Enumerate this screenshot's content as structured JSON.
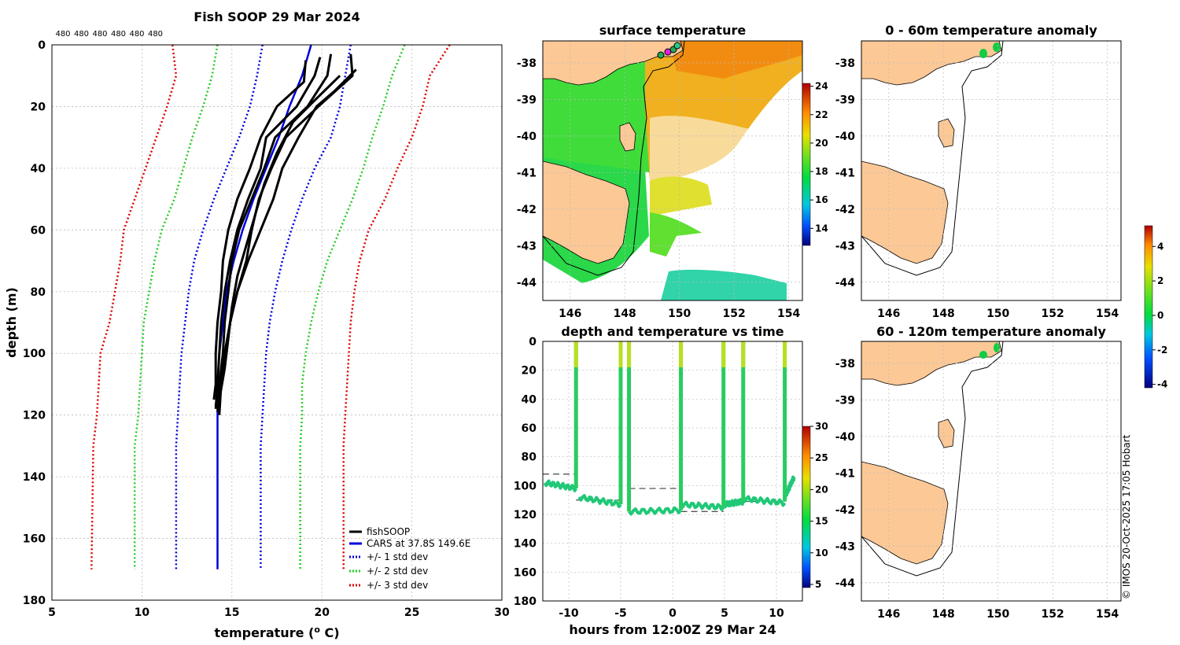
{
  "credit": "© IMOS 20-Oct-2025 17:05 Hobart",
  "colors": {
    "land": "#fbc896",
    "fish": "#000000",
    "cars": "#0000dd",
    "sd1": "#0000dd",
    "sd2": "#22cc22",
    "sd3": "#dd0000",
    "grid": "#bbbbbb"
  },
  "chart_data": [
    {
      "type": "line",
      "id": "profile",
      "title": "Fish SOOP 29 Mar 2024",
      "top_labels": [
        "480",
        "480",
        "480",
        "480",
        "480",
        "480"
      ],
      "xlabel": "temperature (o C)",
      "xlabel_main": "temperature (",
      "xlabel_sup": "o",
      "xlabel_end": " C)",
      "ylabel": "depth (m)",
      "xlim": [
        5,
        30
      ],
      "ylim": [
        0,
        180
      ],
      "xticks": [
        "5",
        "10",
        "15",
        "20",
        "25",
        "30"
      ],
      "yticks": [
        "0",
        "20",
        "40",
        "60",
        "80",
        "100",
        "120",
        "140",
        "160",
        "180"
      ],
      "legend": [
        "fishSOOP",
        "CARS at 37.8S 149.6E",
        "+/- 1 std dev",
        "+/- 2 std dev",
        "+/- 3 std dev"
      ],
      "series": [
        {
          "name": "CARS mean",
          "depth": [
            0,
            10,
            20,
            30,
            40,
            50,
            60,
            70,
            80,
            90,
            100,
            110,
            120,
            130,
            170
          ],
          "temp": [
            19.4,
            18.9,
            18.2,
            17.6,
            16.9,
            16.2,
            15.6,
            15.1,
            14.7,
            14.5,
            14.3,
            14.2,
            14.2,
            14.2,
            14.2
          ]
        },
        {
          "name": "+1 std",
          "depth": [
            0,
            10,
            20,
            30,
            40,
            50,
            60,
            70,
            80,
            90,
            100,
            110,
            120,
            130,
            170
          ],
          "temp": [
            21.6,
            21.3,
            21.0,
            20.5,
            19.6,
            18.9,
            18.3,
            17.8,
            17.4,
            17.1,
            16.9,
            16.8,
            16.7,
            16.6,
            16.6
          ]
        },
        {
          "name": "-1 std",
          "depth": [
            0,
            10,
            20,
            30,
            40,
            50,
            60,
            70,
            80,
            90,
            100,
            110,
            120,
            130,
            170
          ],
          "temp": [
            16.7,
            16.4,
            16.0,
            15.4,
            14.7,
            14.0,
            13.4,
            12.9,
            12.6,
            12.4,
            12.2,
            12.1,
            12.0,
            11.9,
            11.9
          ]
        },
        {
          "name": "+2 std",
          "depth": [
            0,
            10,
            20,
            30,
            40,
            50,
            60,
            70,
            80,
            90,
            100,
            110,
            120,
            130,
            170
          ],
          "temp": [
            24.6,
            23.9,
            23.4,
            22.8,
            22.3,
            21.7,
            21.0,
            20.3,
            19.8,
            19.4,
            19.1,
            18.9,
            18.9,
            18.8,
            18.8
          ]
        },
        {
          "name": "-2 std",
          "depth": [
            0,
            10,
            20,
            30,
            40,
            50,
            60,
            70,
            80,
            90,
            100,
            110,
            120,
            130,
            170
          ],
          "temp": [
            14.2,
            13.9,
            13.4,
            12.8,
            12.3,
            11.8,
            11.1,
            10.7,
            10.4,
            10.1,
            10.0,
            9.9,
            9.8,
            9.6,
            9.6
          ]
        },
        {
          "name": "+3 std",
          "depth": [
            0,
            10,
            20,
            30,
            40,
            50,
            60,
            70,
            80,
            90,
            100,
            110,
            120,
            130,
            170
          ],
          "temp": [
            27.1,
            26.0,
            25.6,
            25.0,
            24.2,
            23.5,
            22.6,
            22.1,
            21.8,
            21.6,
            21.5,
            21.4,
            21.3,
            21.2,
            21.2
          ]
        },
        {
          "name": "-3 std",
          "depth": [
            0,
            10,
            20,
            30,
            40,
            50,
            60,
            70,
            80,
            90,
            100,
            110,
            120,
            130,
            170
          ],
          "temp": [
            11.7,
            11.9,
            11.4,
            10.8,
            10.2,
            9.6,
            9.0,
            8.8,
            8.5,
            8.2,
            7.7,
            7.6,
            7.5,
            7.3,
            7.2
          ]
        },
        {
          "name": "fish1",
          "depth": [
            4,
            10,
            20,
            30,
            40,
            50,
            60,
            70,
            80,
            90,
            100,
            110,
            118
          ],
          "temp": [
            19.9,
            19.6,
            18.6,
            16.9,
            16.6,
            15.9,
            15.3,
            14.9,
            14.6,
            14.4,
            14.3,
            14.2,
            14.1
          ]
        },
        {
          "name": "fish2",
          "depth": [
            3,
            10,
            20,
            30,
            40,
            50,
            60,
            70,
            80,
            90,
            100,
            110,
            117
          ],
          "temp": [
            20.5,
            20.3,
            19.2,
            17.4,
            16.8,
            16.1,
            15.4,
            15.0,
            14.8,
            14.6,
            14.5,
            14.3,
            14.1
          ]
        },
        {
          "name": "fish3",
          "depth": [
            3,
            10,
            20,
            30,
            40,
            50,
            60,
            70,
            80,
            90,
            100,
            110,
            119
          ],
          "temp": [
            21.6,
            21.7,
            19.8,
            18.0,
            17.2,
            16.5,
            16.1,
            15.8,
            15.3,
            14.9,
            14.7,
            14.4,
            14.2
          ]
        },
        {
          "name": "fish4",
          "depth": [
            8,
            15,
            20,
            30,
            40,
            50,
            60,
            70,
            80,
            90,
            100,
            110,
            120
          ],
          "temp": [
            21.9,
            20.7,
            19.7,
            18.7,
            17.8,
            17.3,
            16.6,
            15.9,
            15.3,
            14.9,
            14.6,
            14.4,
            14.3
          ]
        },
        {
          "name": "fish5",
          "depth": [
            5,
            12,
            20,
            30,
            40,
            50,
            60,
            70,
            80,
            90,
            100,
            110,
            115
          ],
          "temp": [
            19.1,
            19.0,
            17.5,
            16.6,
            16.0,
            15.3,
            14.8,
            14.5,
            14.4,
            14.2,
            14.1,
            14.1,
            14.0
          ]
        },
        {
          "name": "fish6",
          "depth": [
            10,
            18,
            25,
            35,
            45,
            55,
            65,
            75,
            85,
            95,
            105,
            115
          ],
          "temp": [
            21.0,
            19.6,
            18.4,
            17.5,
            16.8,
            16.3,
            15.8,
            15.3,
            15.0,
            14.8,
            14.6,
            14.3
          ]
        }
      ]
    },
    {
      "type": "heatmap",
      "id": "sst",
      "title": "surface temperature",
      "xticks": [
        "146",
        "148",
        "150",
        "152",
        "154"
      ],
      "yticks": [
        "-38",
        "-39",
        "-40",
        "-41",
        "-42",
        "-43",
        "-44"
      ],
      "lon_range": [
        145,
        154.5
      ],
      "lat_range": [
        -44.5,
        -37.4
      ],
      "colorbar_range": [
        12.8,
        24.2
      ],
      "colorbar_ticks": [
        "14",
        "16",
        "18",
        "20",
        "22",
        "24"
      ]
    },
    {
      "type": "scatter",
      "id": "depthtime",
      "title": "depth and temperature vs time",
      "xlabel": "hours from 12:00Z 29 Mar 24",
      "xlim": [
        -12.5,
        12.5
      ],
      "ylim": [
        0,
        180
      ],
      "xticks": [
        "-10",
        "-5",
        "0",
        "5",
        "10"
      ],
      "yticks": [
        "0",
        "20",
        "40",
        "60",
        "80",
        "100",
        "120",
        "140",
        "160",
        "180"
      ],
      "colorbar_range": [
        4.5,
        30
      ],
      "colorbar_ticks": [
        "5",
        "10",
        "15",
        "20",
        "25",
        "30"
      ],
      "dive_hours": [
        -9.3,
        -5.0,
        -4.2,
        0.8,
        4.9,
        6.8,
        10.8
      ],
      "dashed_depths": [
        [
          -12.5,
          -9.3,
          92
        ],
        [
          -9.3,
          -5.0,
          110
        ],
        [
          -4.2,
          0.8,
          102
        ],
        [
          0.8,
          4.9,
          118
        ],
        [
          6.8,
          10.8,
          111
        ]
      ]
    },
    {
      "type": "heatmap",
      "id": "anom1",
      "title": "0 - 60m temperature anomaly",
      "xticks": [
        "146",
        "148",
        "150",
        "152",
        "154"
      ],
      "yticks": [
        "-38",
        "-39",
        "-40",
        "-41",
        "-42",
        "-43",
        "-44"
      ]
    },
    {
      "type": "heatmap",
      "id": "anom2",
      "title": "60 - 120m temperature anomaly",
      "xticks": [
        "146",
        "148",
        "150",
        "152",
        "154"
      ],
      "yticks": [
        "-38",
        "-39",
        "-40",
        "-41",
        "-42",
        "-43",
        "-44"
      ],
      "colorbar_range": [
        -4.2,
        5.2
      ],
      "colorbar_ticks": [
        "-4",
        "-2",
        "0",
        "2",
        "4"
      ]
    }
  ]
}
